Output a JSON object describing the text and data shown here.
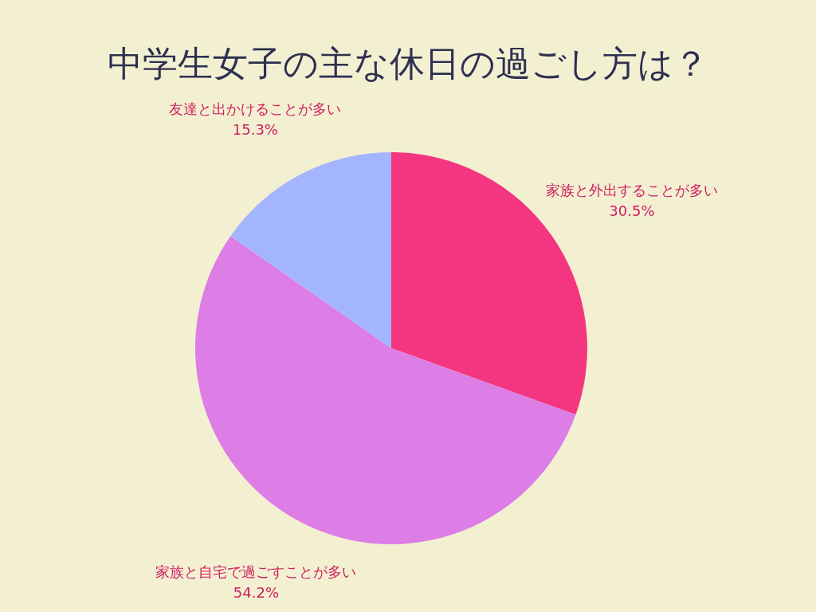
{
  "chart_data": {
    "type": "pie",
    "title": "中学生女子の主な休日の過ごし方は？",
    "categories": [
      "家族と外出することが多い",
      "家族と自宅で過ごすことが多い",
      "友達と出かけることが多い"
    ],
    "values": [
      30.5,
      54.2,
      15.3
    ],
    "value_labels": [
      "30.5%",
      "54.2%",
      "15.3%"
    ],
    "colors": [
      "#f4357f",
      "#dd7de6",
      "#a3b5fe"
    ]
  }
}
